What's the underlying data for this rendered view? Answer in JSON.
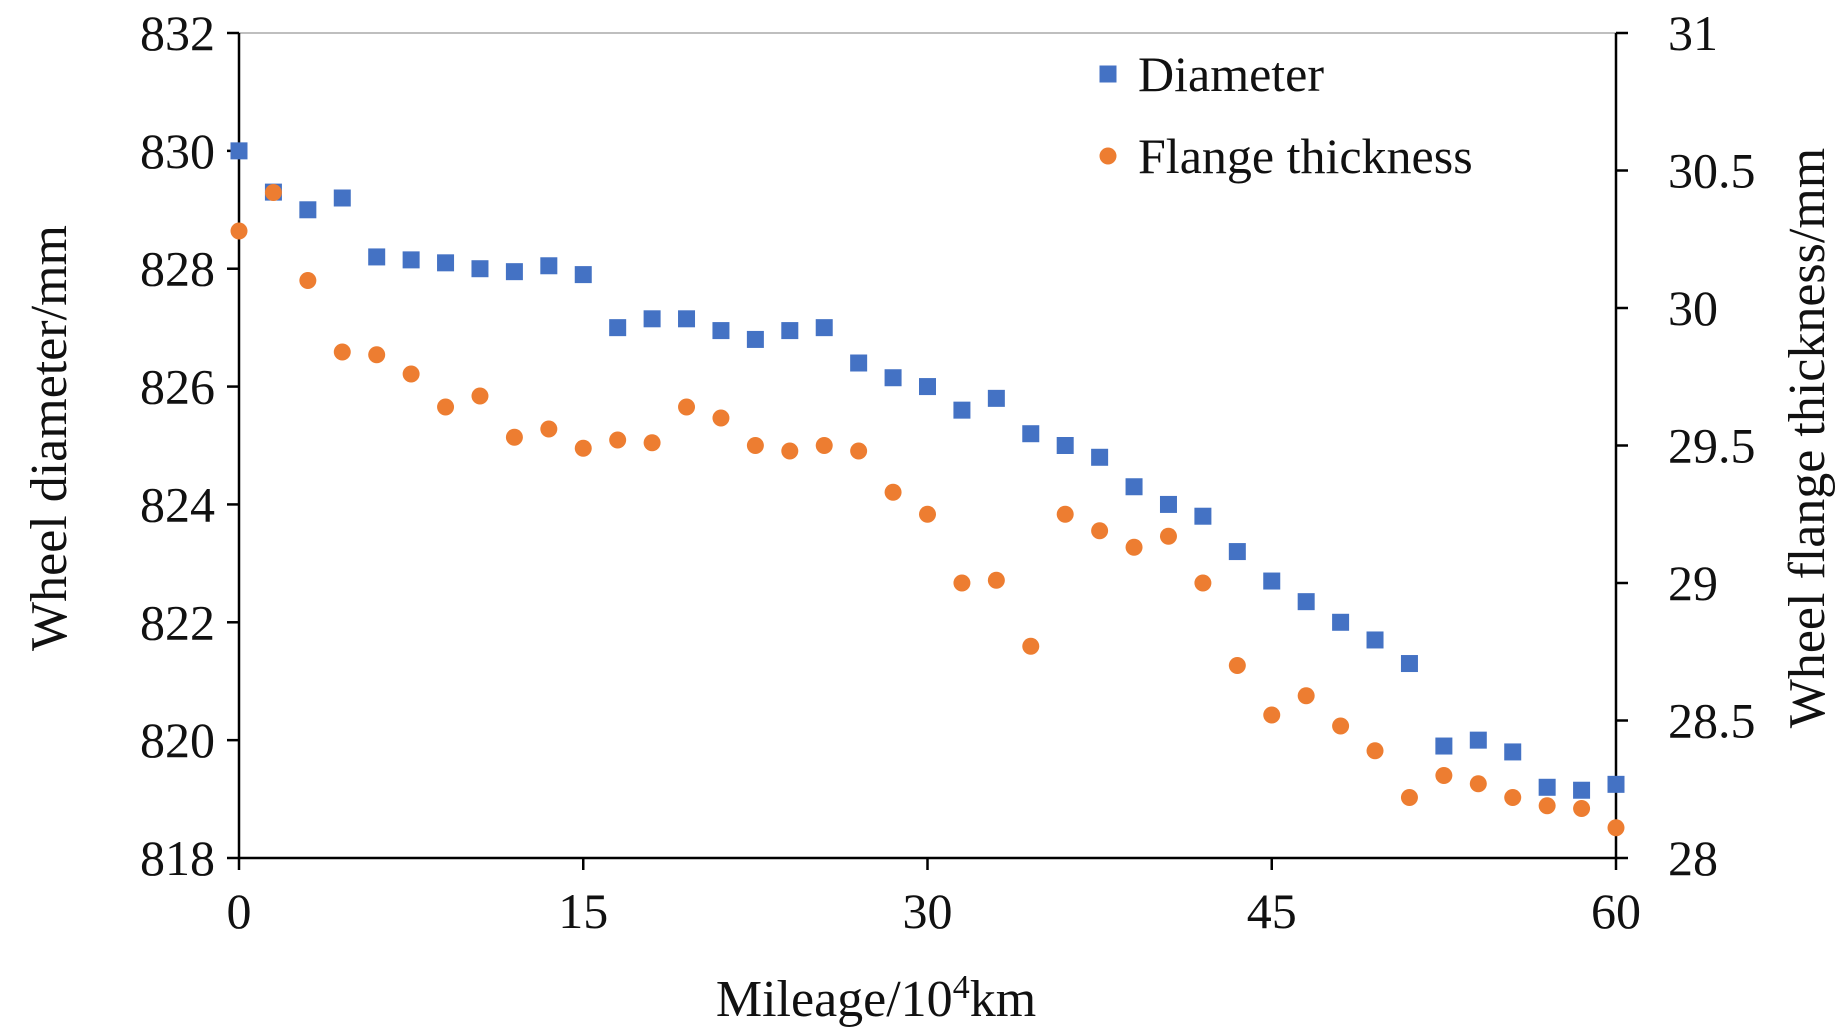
{
  "chart_data": {
    "type": "scatter",
    "x_title_main": "Mileage/10",
    "x_title_sup": "4",
    "x_title_tail": "km",
    "ylabel_left": "Wheel diameter/mm",
    "ylabel_right": "Wheel flange thickness/mm",
    "xlim": [
      0,
      60
    ],
    "ylim_left": [
      818,
      832
    ],
    "ylim_right": [
      28,
      31
    ],
    "x_ticks": [
      0,
      15,
      30,
      45,
      60
    ],
    "x_tick_labels": [
      "0",
      "15",
      "30",
      "45",
      "60"
    ],
    "y_left_ticks": [
      818,
      820,
      822,
      824,
      826,
      828,
      830,
      832
    ],
    "y_left_tick_labels": [
      "818",
      "820",
      "822",
      "824",
      "826",
      "828",
      "830",
      "832"
    ],
    "y_right_ticks": [
      28,
      28.5,
      29,
      29.5,
      30,
      30.5,
      31
    ],
    "y_right_tick_labels": [
      "28",
      "28.5",
      "29",
      "29.5",
      "30",
      "30.5",
      "31"
    ],
    "legend_position": "top-right",
    "series": [
      {
        "name": "Diameter",
        "axis": "left",
        "marker": "square",
        "color": "#4472C4",
        "x": [
          0,
          1.5,
          3,
          4.5,
          6,
          7.5,
          9,
          10.5,
          12,
          13.5,
          15,
          16.5,
          18,
          19.5,
          21,
          22.5,
          24,
          25.5,
          27,
          28.5,
          30,
          31.5,
          33,
          34.5,
          36,
          37.5,
          39,
          40.5,
          42,
          43.5,
          45,
          46.5,
          48,
          49.5,
          51,
          52.5,
          54,
          55.5,
          57,
          58.5,
          60
        ],
        "y": [
          830.0,
          829.3,
          829.0,
          829.2,
          828.2,
          828.15,
          828.1,
          828.0,
          827.95,
          828.05,
          827.9,
          827.0,
          827.15,
          827.15,
          826.95,
          826.8,
          826.95,
          827.0,
          826.4,
          826.15,
          826.0,
          825.6,
          825.8,
          825.2,
          825.0,
          824.8,
          824.3,
          824.0,
          823.8,
          823.2,
          822.7,
          822.35,
          822.0,
          821.7,
          821.3,
          819.9,
          820.0,
          819.8,
          819.2,
          819.15,
          819.25
        ]
      },
      {
        "name": "Flange thickness",
        "axis": "right",
        "marker": "circle",
        "color": "#ED7D31",
        "x": [
          0,
          1.5,
          3,
          4.5,
          6,
          7.5,
          9,
          10.5,
          12,
          13.5,
          15,
          16.5,
          18,
          19.5,
          21,
          22.5,
          24,
          25.5,
          27,
          28.5,
          30,
          31.5,
          33,
          34.5,
          36,
          37.5,
          39,
          40.5,
          42,
          43.5,
          45,
          46.5,
          48,
          49.5,
          51,
          52.5,
          54,
          55.5,
          57,
          58.5,
          60
        ],
        "y": [
          30.28,
          30.42,
          30.1,
          29.84,
          29.83,
          29.76,
          29.64,
          29.68,
          29.53,
          29.56,
          29.49,
          29.52,
          29.51,
          29.64,
          29.6,
          29.5,
          29.48,
          29.5,
          29.48,
          29.33,
          29.25,
          29.0,
          29.01,
          28.77,
          29.25,
          29.19,
          29.13,
          29.17,
          29.0,
          28.7,
          28.52,
          28.59,
          28.48,
          28.39,
          28.22,
          28.3,
          28.27,
          28.22,
          28.19,
          28.18,
          28.11
        ]
      }
    ]
  }
}
